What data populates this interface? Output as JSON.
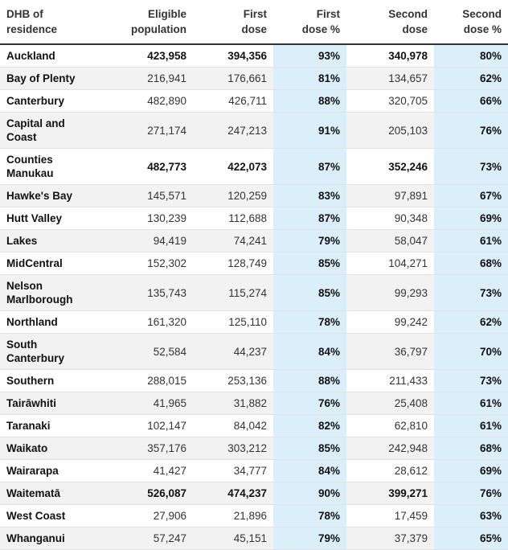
{
  "table": {
    "headers": [
      "DHB of\nresidence",
      "Eligible\npopulation",
      "First\ndose",
      "First\ndose %",
      "Second\ndose",
      "Second\ndose %"
    ],
    "rows": [
      {
        "dhb": "Auckland",
        "eligible": "423,958",
        "first": "394,356",
        "first_pct": "93%",
        "second": "340,978",
        "second_pct": "80%",
        "bold": true,
        "lines": 1
      },
      {
        "dhb": "Bay of Plenty",
        "eligible": "216,941",
        "first": "176,661",
        "first_pct": "81%",
        "second": "134,657",
        "second_pct": "62%",
        "bold": false,
        "lines": 1
      },
      {
        "dhb": "Canterbury",
        "eligible": "482,890",
        "first": "426,711",
        "first_pct": "88%",
        "second": "320,705",
        "second_pct": "66%",
        "bold": false,
        "lines": 1
      },
      {
        "dhb": "Capital and Coast",
        "eligible": "271,174",
        "first": "247,213",
        "first_pct": "91%",
        "second": "205,103",
        "second_pct": "76%",
        "bold": false,
        "lines": 2
      },
      {
        "dhb": "Counties Manukau",
        "eligible": "482,773",
        "first": "422,073",
        "first_pct": "87%",
        "second": "352,246",
        "second_pct": "73%",
        "bold": true,
        "lines": 2
      },
      {
        "dhb": "Hawke's Bay",
        "eligible": "145,571",
        "first": "120,259",
        "first_pct": "83%",
        "second": "97,891",
        "second_pct": "67%",
        "bold": false,
        "lines": 1
      },
      {
        "dhb": "Hutt Valley",
        "eligible": "130,239",
        "first": "112,688",
        "first_pct": "87%",
        "second": "90,348",
        "second_pct": "69%",
        "bold": false,
        "lines": 1
      },
      {
        "dhb": "Lakes",
        "eligible": "94,419",
        "first": "74,241",
        "first_pct": "79%",
        "second": "58,047",
        "second_pct": "61%",
        "bold": false,
        "lines": 1
      },
      {
        "dhb": "MidCentral",
        "eligible": "152,302",
        "first": "128,749",
        "first_pct": "85%",
        "second": "104,271",
        "second_pct": "68%",
        "bold": false,
        "lines": 1
      },
      {
        "dhb": "Nelson Marlborough",
        "eligible": "135,743",
        "first": "115,274",
        "first_pct": "85%",
        "second": "99,293",
        "second_pct": "73%",
        "bold": false,
        "lines": 2
      },
      {
        "dhb": "Northland",
        "eligible": "161,320",
        "first": "125,110",
        "first_pct": "78%",
        "second": "99,242",
        "second_pct": "62%",
        "bold": false,
        "lines": 1
      },
      {
        "dhb": "South Canterbury",
        "eligible": "52,584",
        "first": "44,237",
        "first_pct": "84%",
        "second": "36,797",
        "second_pct": "70%",
        "bold": false,
        "lines": 2
      },
      {
        "dhb": "Southern",
        "eligible": "288,015",
        "first": "253,136",
        "first_pct": "88%",
        "second": "211,433",
        "second_pct": "73%",
        "bold": false,
        "lines": 1
      },
      {
        "dhb": "Tairāwhiti",
        "eligible": "41,965",
        "first": "31,882",
        "first_pct": "76%",
        "second": "25,408",
        "second_pct": "61%",
        "bold": false,
        "lines": 1
      },
      {
        "dhb": "Taranaki",
        "eligible": "102,147",
        "first": "84,042",
        "first_pct": "82%",
        "second": "62,810",
        "second_pct": "61%",
        "bold": false,
        "lines": 1
      },
      {
        "dhb": "Waikato",
        "eligible": "357,176",
        "first": "303,212",
        "first_pct": "85%",
        "second": "242,948",
        "second_pct": "68%",
        "bold": false,
        "lines": 1
      },
      {
        "dhb": "Wairarapa",
        "eligible": "41,427",
        "first": "34,777",
        "first_pct": "84%",
        "second": "28,612",
        "second_pct": "69%",
        "bold": false,
        "lines": 1
      },
      {
        "dhb": "Waitematā",
        "eligible": "526,087",
        "first": "474,237",
        "first_pct": "90%",
        "second": "399,271",
        "second_pct": "76%",
        "bold": true,
        "lines": 1
      },
      {
        "dhb": "West Coast",
        "eligible": "27,906",
        "first": "21,896",
        "first_pct": "78%",
        "second": "17,459",
        "second_pct": "63%",
        "bold": false,
        "lines": 1
      },
      {
        "dhb": "Whanganui",
        "eligible": "57,247",
        "first": "45,151",
        "first_pct": "79%",
        "second": "37,379",
        "second_pct": "65%",
        "bold": false,
        "lines": 1
      }
    ]
  },
  "colors": {
    "pct_highlight": "#dbeffa",
    "stripe": "#f2f2f2",
    "header_rule": "#333333"
  }
}
